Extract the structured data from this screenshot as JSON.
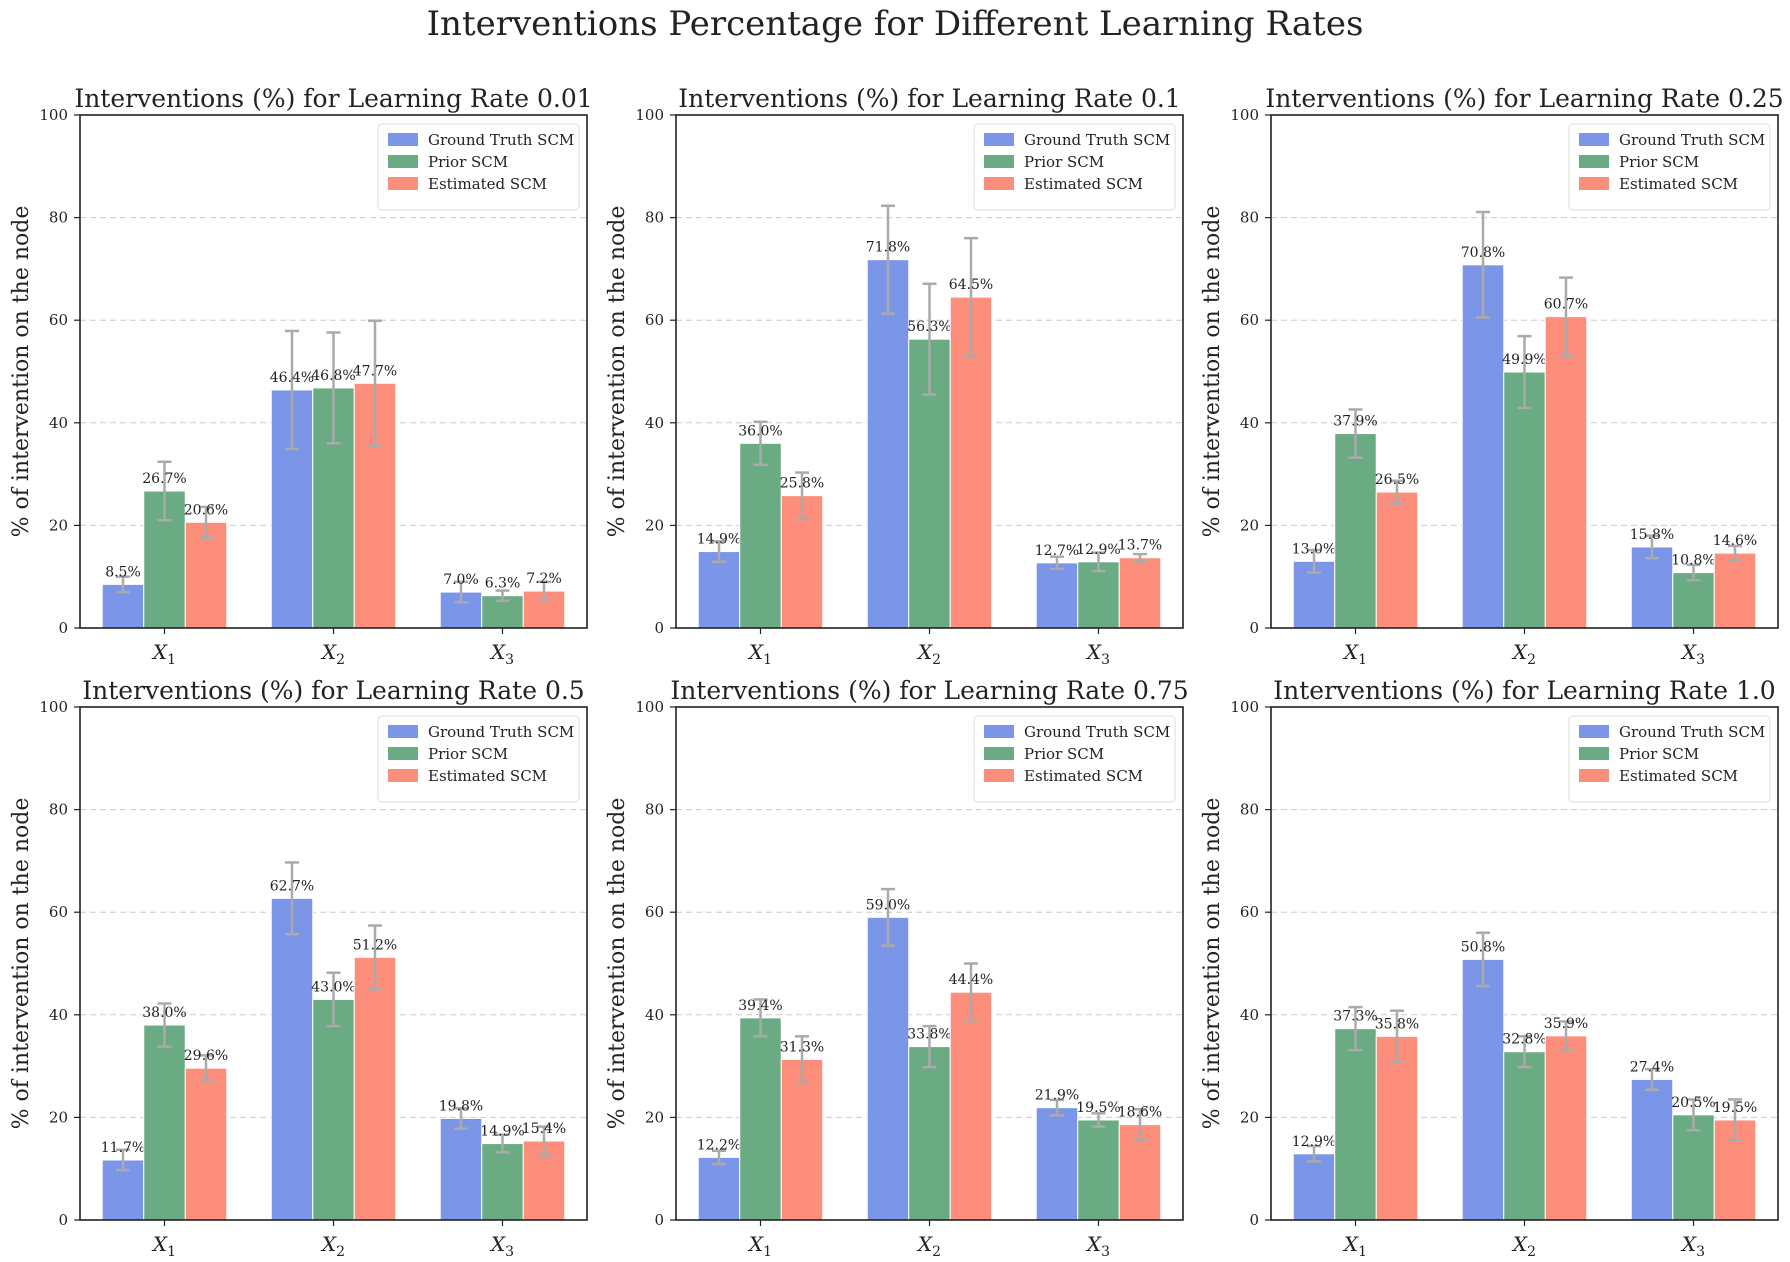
{
  "title": "Interventions Percentage for Different Learning Rates",
  "colors": {
    "Ground Truth SCM": "#7b95e8",
    "Prior SCM": "#6aab84",
    "Estimated SCM": "#fd8e7b",
    "error": "#aaaaaa",
    "grid": "#cccccc"
  },
  "chart_data": [
    {
      "type": "bar",
      "title": "Interventions (%) for Learning Rate 0.01",
      "ylabel": "% of intervention on the node",
      "ylim": [
        0,
        100
      ],
      "yticks": [
        "0",
        "20",
        "40",
        "60",
        "80",
        "100"
      ],
      "categories": [
        "X1",
        "X2",
        "X3"
      ],
      "category_labels": [
        {
          "base": "X",
          "sub": "1"
        },
        {
          "base": "X",
          "sub": "2"
        },
        {
          "base": "X",
          "sub": "3"
        }
      ],
      "legend": "top-right",
      "grid": "y-dashed",
      "series": [
        {
          "name": "Ground Truth SCM",
          "values": [
            8.5,
            46.4,
            7.0
          ],
          "errors": [
            1.5,
            11.5,
            2.0
          ],
          "labels": [
            "8.5%",
            "46.4%",
            "7.0%"
          ]
        },
        {
          "name": "Prior SCM",
          "values": [
            26.7,
            46.8,
            6.3
          ],
          "errors": [
            5.7,
            10.8,
            1.0
          ],
          "labels": [
            "26.7%",
            "46.8%",
            "6.3%"
          ]
        },
        {
          "name": "Estimated SCM",
          "values": [
            20.6,
            47.7,
            7.2
          ],
          "errors": [
            3.0,
            12.2,
            1.8
          ],
          "labels": [
            "20.6%",
            "47.7%",
            "7.2%"
          ]
        }
      ]
    },
    {
      "type": "bar",
      "title": "Interventions (%) for Learning Rate 0.1",
      "ylabel": "% of intervention on the node",
      "ylim": [
        0,
        100
      ],
      "yticks": [
        "0",
        "20",
        "40",
        "60",
        "80",
        "100"
      ],
      "categories": [
        "X1",
        "X2",
        "X3"
      ],
      "category_labels": [
        {
          "base": "X",
          "sub": "1"
        },
        {
          "base": "X",
          "sub": "2"
        },
        {
          "base": "X",
          "sub": "3"
        }
      ],
      "legend": "top-right",
      "grid": "y-dashed",
      "series": [
        {
          "name": "Ground Truth SCM",
          "values": [
            14.9,
            71.8,
            12.7
          ],
          "errors": [
            2.0,
            10.5,
            1.2
          ],
          "labels": [
            "14.9%",
            "71.8%",
            "12.7%"
          ]
        },
        {
          "name": "Prior SCM",
          "values": [
            36.0,
            56.3,
            12.9
          ],
          "errors": [
            4.2,
            10.8,
            1.8
          ],
          "labels": [
            "36.0%",
            "56.3%",
            "12.9%"
          ]
        },
        {
          "name": "Estimated SCM",
          "values": [
            25.8,
            64.5,
            13.7
          ],
          "errors": [
            4.5,
            11.5,
            0.7
          ],
          "labels": [
            "25.8%",
            "64.5%",
            "13.7%"
          ]
        }
      ]
    },
    {
      "type": "bar",
      "title": "Interventions (%) for Learning Rate 0.25",
      "ylabel": "% of intervention on the node",
      "ylim": [
        0,
        100
      ],
      "yticks": [
        "0",
        "20",
        "40",
        "60",
        "80",
        "100"
      ],
      "categories": [
        "X1",
        "X2",
        "X3"
      ],
      "category_labels": [
        {
          "base": "X",
          "sub": "1"
        },
        {
          "base": "X",
          "sub": "2"
        },
        {
          "base": "X",
          "sub": "3"
        }
      ],
      "legend": "top-right",
      "grid": "y-dashed",
      "series": [
        {
          "name": "Ground Truth SCM",
          "values": [
            13.0,
            70.8,
            15.8
          ],
          "errors": [
            2.2,
            10.3,
            2.2
          ],
          "labels": [
            "13.0%",
            "70.8%",
            "15.8%"
          ]
        },
        {
          "name": "Prior SCM",
          "values": [
            37.9,
            49.9,
            10.8
          ],
          "errors": [
            4.7,
            7.0,
            1.5
          ],
          "labels": [
            "37.9%",
            "49.9%",
            "10.8%"
          ]
        },
        {
          "name": "Estimated SCM",
          "values": [
            26.5,
            60.7,
            14.6
          ],
          "errors": [
            2.2,
            7.6,
            1.4
          ],
          "labels": [
            "26.5%",
            "60.7%",
            "14.6%"
          ]
        }
      ]
    },
    {
      "type": "bar",
      "title": "Interventions (%) for Learning Rate 0.5",
      "ylabel": "% of intervention on the node",
      "ylim": [
        0,
        100
      ],
      "yticks": [
        "0",
        "20",
        "40",
        "60",
        "80",
        "100"
      ],
      "categories": [
        "X1",
        "X2",
        "X3"
      ],
      "category_labels": [
        {
          "base": "X",
          "sub": "1"
        },
        {
          "base": "X",
          "sub": "2"
        },
        {
          "base": "X",
          "sub": "3"
        }
      ],
      "legend": "top-right",
      "grid": "y-dashed",
      "series": [
        {
          "name": "Ground Truth SCM",
          "values": [
            11.7,
            62.7,
            19.8
          ],
          "errors": [
            2.0,
            7.0,
            2.0
          ],
          "labels": [
            "11.7%",
            "62.7%",
            "19.8%"
          ]
        },
        {
          "name": "Prior SCM",
          "values": [
            38.0,
            43.0,
            14.9
          ],
          "errors": [
            4.2,
            5.2,
            1.7
          ],
          "labels": [
            "38.0%",
            "43.0%",
            "14.9%"
          ]
        },
        {
          "name": "Estimated SCM",
          "values": [
            29.6,
            51.2,
            15.4
          ],
          "errors": [
            2.5,
            6.2,
            2.8
          ],
          "labels": [
            "29.6%",
            "51.2%",
            "15.4%"
          ]
        }
      ]
    },
    {
      "type": "bar",
      "title": "Interventions (%) for Learning Rate 0.75",
      "ylabel": "% of intervention on the node",
      "ylim": [
        0,
        100
      ],
      "yticks": [
        "0",
        "20",
        "40",
        "60",
        "80",
        "100"
      ],
      "categories": [
        "X1",
        "X2",
        "X3"
      ],
      "category_labels": [
        {
          "base": "X",
          "sub": "1"
        },
        {
          "base": "X",
          "sub": "2"
        },
        {
          "base": "X",
          "sub": "3"
        }
      ],
      "legend": "top-right",
      "grid": "y-dashed",
      "series": [
        {
          "name": "Ground Truth SCM",
          "values": [
            12.2,
            59.0,
            21.9
          ],
          "errors": [
            1.3,
            5.5,
            1.5
          ],
          "labels": [
            "12.2%",
            "59.0%",
            "21.9%"
          ]
        },
        {
          "name": "Prior SCM",
          "values": [
            39.4,
            33.8,
            19.5
          ],
          "errors": [
            3.6,
            4.0,
            1.3
          ],
          "labels": [
            "39.4%",
            "33.8%",
            "19.5%"
          ]
        },
        {
          "name": "Estimated SCM",
          "values": [
            31.3,
            44.4,
            18.6
          ],
          "errors": [
            4.5,
            5.6,
            3.0
          ],
          "labels": [
            "31.3%",
            "44.4%",
            "18.6%"
          ]
        }
      ]
    },
    {
      "type": "bar",
      "title": "Interventions (%) for Learning Rate 1.0",
      "ylabel": "% of intervention on the node",
      "ylim": [
        0,
        100
      ],
      "yticks": [
        "0",
        "20",
        "40",
        "60",
        "80",
        "100"
      ],
      "categories": [
        "X1",
        "X2",
        "X3"
      ],
      "category_labels": [
        {
          "base": "X",
          "sub": "1"
        },
        {
          "base": "X",
          "sub": "2"
        },
        {
          "base": "X",
          "sub": "3"
        }
      ],
      "legend": "top-right",
      "grid": "y-dashed",
      "series": [
        {
          "name": "Ground Truth SCM",
          "values": [
            12.9,
            50.8,
            27.4
          ],
          "errors": [
            1.5,
            5.2,
            2.0
          ],
          "labels": [
            "12.9%",
            "50.8%",
            "27.4%"
          ]
        },
        {
          "name": "Prior SCM",
          "values": [
            37.3,
            32.8,
            20.5
          ],
          "errors": [
            4.2,
            3.0,
            3.0
          ],
          "labels": [
            "37.3%",
            "32.8%",
            "20.5%"
          ]
        },
        {
          "name": "Estimated SCM",
          "values": [
            35.8,
            35.9,
            19.5
          ],
          "errors": [
            5.0,
            2.8,
            4.0
          ],
          "labels": [
            "35.8%",
            "35.9%",
            "19.5%"
          ]
        }
      ]
    }
  ]
}
